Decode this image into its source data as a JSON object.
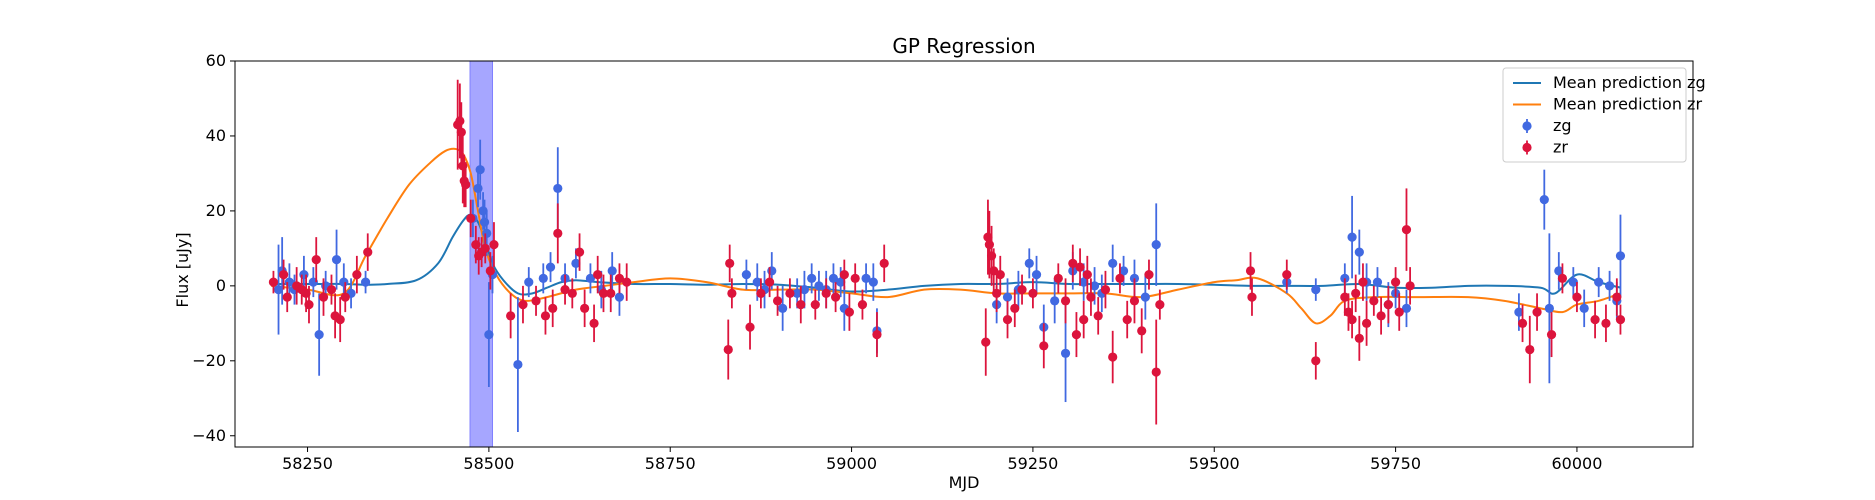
{
  "chart_data": {
    "type": "scatter",
    "title": "GP Regression",
    "xlabel": "MJD",
    "ylabel": "Flux [uJy]",
    "xlim": [
      58150,
      60160
    ],
    "ylim": [
      -43,
      60
    ],
    "xticks": [
      58250,
      58500,
      58750,
      59000,
      59250,
      59500,
      59750,
      60000
    ],
    "yticks": [
      -40,
      -20,
      0,
      20,
      40,
      60
    ],
    "highlight_band": {
      "x0": 58474,
      "x1": 58505,
      "color": "#a6a6ff"
    },
    "legend_position": "top-right",
    "legend": [
      {
        "label": "Mean prediction zg",
        "kind": "line",
        "color": "#1f77b4"
      },
      {
        "label": "Mean prediction zr",
        "kind": "line",
        "color": "#ff7f0e"
      },
      {
        "label": "zg",
        "kind": "errorbar",
        "color": "#4169e1"
      },
      {
        "label": "zr",
        "kind": "errorbar",
        "color": "#dc143c"
      }
    ],
    "lines": [
      {
        "name": "Mean prediction zg",
        "color": "#1f77b4",
        "x": [
          58200,
          58260,
          58300,
          58330,
          58360,
          58400,
          58430,
          58450,
          58465,
          58475,
          58485,
          58495,
          58505,
          58520,
          58540,
          58560,
          58580,
          58600,
          58620,
          58650,
          58700,
          58750,
          58800,
          58850,
          58900,
          58950,
          59000,
          59050,
          59100,
          59150,
          59200,
          59250,
          59300,
          59350,
          59400,
          59450,
          59500,
          59550,
          59600,
          59650,
          59700,
          59750,
          59800,
          59850,
          59900,
          59950,
          59970,
          60000,
          60030,
          60060
        ],
        "y": [
          0.5,
          0.5,
          0.5,
          0.3,
          0.5,
          1.5,
          6,
          13,
          17.5,
          19,
          17,
          12,
          6,
          1.5,
          -2,
          -2,
          -0.5,
          1,
          1.5,
          1,
          0.5,
          0.5,
          0.3,
          0.5,
          0.3,
          -0.5,
          -1.5,
          -1,
          0,
          0.5,
          0.5,
          1,
          0.5,
          0.5,
          0.5,
          0.5,
          0.3,
          0,
          0,
          0,
          0.5,
          -0.5,
          -0.5,
          0,
          0,
          -0.5,
          -2,
          3,
          1,
          -0.5
        ]
      },
      {
        "name": "Mean prediction zr",
        "color": "#ff7f0e",
        "x": [
          58200,
          58250,
          58300,
          58330,
          58360,
          58390,
          58420,
          58440,
          58455,
          58465,
          58475,
          58485,
          58495,
          58510,
          58530,
          58550,
          58580,
          58620,
          58660,
          58700,
          58750,
          58800,
          58850,
          58900,
          58950,
          59000,
          59050,
          59100,
          59150,
          59200,
          59250,
          59300,
          59350,
          59400,
          59450,
          59500,
          59530,
          59560,
          59600,
          59620,
          59640,
          59660,
          59680,
          59720,
          59780,
          59850,
          59900,
          59950,
          59980,
          60000,
          60030,
          60060
        ],
        "y": [
          0,
          -1,
          -2,
          8,
          18,
          27,
          33,
          36,
          36.5,
          35,
          30,
          20,
          10,
          3,
          -2,
          -4,
          -3,
          -1,
          0,
          1,
          2,
          1,
          -1,
          -1,
          -1,
          -2,
          -3,
          -1,
          -1,
          -2,
          -2,
          -2,
          -2,
          -3,
          -1,
          1,
          1.5,
          2,
          -2,
          -6,
          -10,
          -8,
          -4,
          -3,
          -3,
          -3,
          -4,
          -6,
          -7,
          -5,
          -4,
          -2
        ]
      }
    ],
    "series": [
      {
        "name": "zg",
        "color": "#4169e1",
        "points": [
          [
            58210,
            -1,
            12
          ],
          [
            58215,
            4,
            9
          ],
          [
            58225,
            1,
            5
          ],
          [
            58232,
            -1,
            4
          ],
          [
            58245,
            3,
            5
          ],
          [
            58258,
            1,
            4
          ],
          [
            58266,
            -13,
            11
          ],
          [
            58275,
            0,
            4
          ],
          [
            58290,
            7,
            8
          ],
          [
            58300,
            1,
            5
          ],
          [
            58310,
            -2,
            4
          ],
          [
            58330,
            1,
            3
          ],
          [
            58478,
            18,
            5
          ],
          [
            58485,
            26,
            5
          ],
          [
            58488,
            31,
            8
          ],
          [
            58492,
            20,
            5
          ],
          [
            58494,
            17,
            6
          ],
          [
            58497,
            14,
            6
          ],
          [
            58500,
            -13,
            14
          ],
          [
            58505,
            3,
            5
          ],
          [
            58540,
            -21,
            18
          ],
          [
            58555,
            1,
            4
          ],
          [
            58575,
            2,
            4
          ],
          [
            58585,
            5,
            4
          ],
          [
            58595,
            26,
            11
          ],
          [
            58605,
            2,
            4
          ],
          [
            58620,
            6,
            4
          ],
          [
            58640,
            2,
            4
          ],
          [
            58655,
            -1,
            5
          ],
          [
            58670,
            4,
            5
          ],
          [
            58680,
            -3,
            5
          ],
          [
            58855,
            3,
            4
          ],
          [
            58870,
            1,
            5
          ],
          [
            58880,
            -1,
            5
          ],
          [
            58890,
            4,
            5
          ],
          [
            58905,
            -6,
            6
          ],
          [
            58925,
            -2,
            4
          ],
          [
            58935,
            -1,
            5
          ],
          [
            58945,
            2,
            4
          ],
          [
            58955,
            0,
            4
          ],
          [
            58965,
            -1,
            5
          ],
          [
            58975,
            2,
            4
          ],
          [
            58985,
            1,
            4
          ],
          [
            58990,
            -6,
            6
          ],
          [
            59020,
            2,
            4
          ],
          [
            59030,
            1,
            5
          ],
          [
            59035,
            -12,
            6
          ],
          [
            59200,
            -5,
            5
          ],
          [
            59215,
            -3,
            5
          ],
          [
            59230,
            -1,
            5
          ],
          [
            59245,
            6,
            4
          ],
          [
            59255,
            3,
            5
          ],
          [
            59265,
            -11,
            6
          ],
          [
            59280,
            -4,
            6
          ],
          [
            59295,
            -18,
            13
          ],
          [
            59305,
            4,
            5
          ],
          [
            59320,
            1,
            5
          ],
          [
            59335,
            0,
            5
          ],
          [
            59345,
            -2,
            5
          ],
          [
            59360,
            6,
            5
          ],
          [
            59375,
            4,
            4
          ],
          [
            59390,
            2,
            5
          ],
          [
            59405,
            -3,
            6
          ],
          [
            59420,
            11,
            11
          ],
          [
            59600,
            1,
            3
          ],
          [
            59640,
            -1,
            3
          ],
          [
            59680,
            2,
            4
          ],
          [
            59690,
            13,
            11
          ],
          [
            59700,
            9,
            6
          ],
          [
            59710,
            1,
            5
          ],
          [
            59725,
            1,
            4
          ],
          [
            59740,
            -5,
            6
          ],
          [
            59750,
            -2,
            4
          ],
          [
            59765,
            -6,
            5
          ],
          [
            59920,
            -7,
            5
          ],
          [
            59955,
            23,
            8
          ],
          [
            59962,
            -6,
            20
          ],
          [
            59975,
            4,
            5
          ],
          [
            59995,
            1,
            4
          ],
          [
            60010,
            -6,
            5
          ],
          [
            60030,
            1,
            4
          ],
          [
            60045,
            0,
            4
          ],
          [
            60055,
            -4,
            5
          ],
          [
            60060,
            8,
            11
          ]
        ]
      },
      {
        "name": "zr",
        "color": "#dc143c",
        "points": [
          [
            58203,
            1,
            3
          ],
          [
            58217,
            3,
            4
          ],
          [
            58222,
            -3,
            4
          ],
          [
            58235,
            0,
            5
          ],
          [
            58242,
            -1,
            4
          ],
          [
            58248,
            -2,
            5
          ],
          [
            58252,
            -5,
            5
          ],
          [
            58262,
            7,
            6
          ],
          [
            58272,
            -3,
            5
          ],
          [
            58283,
            -1,
            4
          ],
          [
            58288,
            -8,
            6
          ],
          [
            58295,
            -9,
            6
          ],
          [
            58302,
            -3,
            4
          ],
          [
            58318,
            3,
            5
          ],
          [
            58333,
            9,
            5
          ],
          [
            58457,
            43,
            12
          ],
          [
            58460,
            44,
            10
          ],
          [
            58462,
            41,
            8
          ],
          [
            58464,
            32,
            10
          ],
          [
            58466,
            28,
            7
          ],
          [
            58468,
            27,
            6
          ],
          [
            58475,
            18,
            5
          ],
          [
            58482,
            11,
            5
          ],
          [
            58486,
            8,
            5
          ],
          [
            58490,
            9,
            4
          ],
          [
            58495,
            10,
            4
          ],
          [
            58502,
            4,
            5
          ],
          [
            58507,
            11,
            6
          ],
          [
            58530,
            -8,
            6
          ],
          [
            58547,
            -5,
            5
          ],
          [
            58565,
            -4,
            4
          ],
          [
            58578,
            -8,
            5
          ],
          [
            58588,
            -6,
            5
          ],
          [
            58595,
            14,
            8
          ],
          [
            58605,
            -1,
            4
          ],
          [
            58615,
            -2,
            4
          ],
          [
            58625,
            9,
            5
          ],
          [
            58632,
            -6,
            5
          ],
          [
            58645,
            -10,
            5
          ],
          [
            58650,
            3,
            5
          ],
          [
            58658,
            -2,
            5
          ],
          [
            58668,
            -2,
            5
          ],
          [
            58680,
            2,
            4
          ],
          [
            58690,
            1,
            5
          ],
          [
            58830,
            -17,
            8
          ],
          [
            58832,
            6,
            5
          ],
          [
            58835,
            -2,
            4
          ],
          [
            58860,
            -11,
            6
          ],
          [
            58875,
            -2,
            4
          ],
          [
            58887,
            1,
            4
          ],
          [
            58898,
            -4,
            4
          ],
          [
            58915,
            -2,
            4
          ],
          [
            58930,
            -5,
            5
          ],
          [
            58950,
            -5,
            4
          ],
          [
            58965,
            -2,
            4
          ],
          [
            58978,
            -3,
            4
          ],
          [
            58990,
            3,
            4
          ],
          [
            58997,
            -7,
            5
          ],
          [
            59005,
            2,
            4
          ],
          [
            59015,
            -5,
            4
          ],
          [
            59035,
            -13,
            6
          ],
          [
            59045,
            6,
            5
          ],
          [
            59185,
            -15,
            9
          ],
          [
            59188,
            13,
            10
          ],
          [
            59190,
            11,
            9
          ],
          [
            59193,
            8,
            8
          ],
          [
            59196,
            4,
            6
          ],
          [
            59200,
            -2,
            5
          ],
          [
            59205,
            3,
            5
          ],
          [
            59215,
            -9,
            5
          ],
          [
            59225,
            -6,
            5
          ],
          [
            59235,
            -1,
            4
          ],
          [
            59250,
            -2,
            4
          ],
          [
            59265,
            -16,
            6
          ],
          [
            59285,
            2,
            4
          ],
          [
            59295,
            -4,
            6
          ],
          [
            59305,
            6,
            5
          ],
          [
            59310,
            -13,
            6
          ],
          [
            59315,
            5,
            5
          ],
          [
            59320,
            -9,
            5
          ],
          [
            59325,
            3,
            5
          ],
          [
            59330,
            -3,
            5
          ],
          [
            59340,
            -8,
            5
          ],
          [
            59350,
            -1,
            5
          ],
          [
            59360,
            -19,
            7
          ],
          [
            59370,
            2,
            4
          ],
          [
            59380,
            -9,
            5
          ],
          [
            59390,
            -4,
            6
          ],
          [
            59400,
            -12,
            6
          ],
          [
            59410,
            3,
            4
          ],
          [
            59420,
            -23,
            14
          ],
          [
            59425,
            -5,
            4
          ],
          [
            59550,
            4,
            5
          ],
          [
            59552,
            -3,
            5
          ],
          [
            59600,
            3,
            4
          ],
          [
            59640,
            -20,
            5
          ],
          [
            59680,
            -3,
            5
          ],
          [
            59685,
            -7,
            5
          ],
          [
            59690,
            -9,
            5
          ],
          [
            59695,
            -2,
            5
          ],
          [
            59700,
            -14,
            6
          ],
          [
            59705,
            1,
            5
          ],
          [
            59710,
            -10,
            6
          ],
          [
            59720,
            -4,
            4
          ],
          [
            59730,
            -8,
            5
          ],
          [
            59740,
            -5,
            5
          ],
          [
            59750,
            1,
            4
          ],
          [
            59755,
            -7,
            5
          ],
          [
            59765,
            15,
            11
          ],
          [
            59770,
            0,
            5
          ],
          [
            59925,
            -10,
            5
          ],
          [
            59935,
            -17,
            9
          ],
          [
            59945,
            -7,
            5
          ],
          [
            59965,
            -13,
            6
          ],
          [
            59980,
            2,
            4
          ],
          [
            60000,
            -3,
            4
          ],
          [
            60025,
            -9,
            5
          ],
          [
            60040,
            -10,
            5
          ],
          [
            60055,
            -3,
            5
          ],
          [
            60060,
            -9,
            4
          ]
        ]
      }
    ]
  }
}
